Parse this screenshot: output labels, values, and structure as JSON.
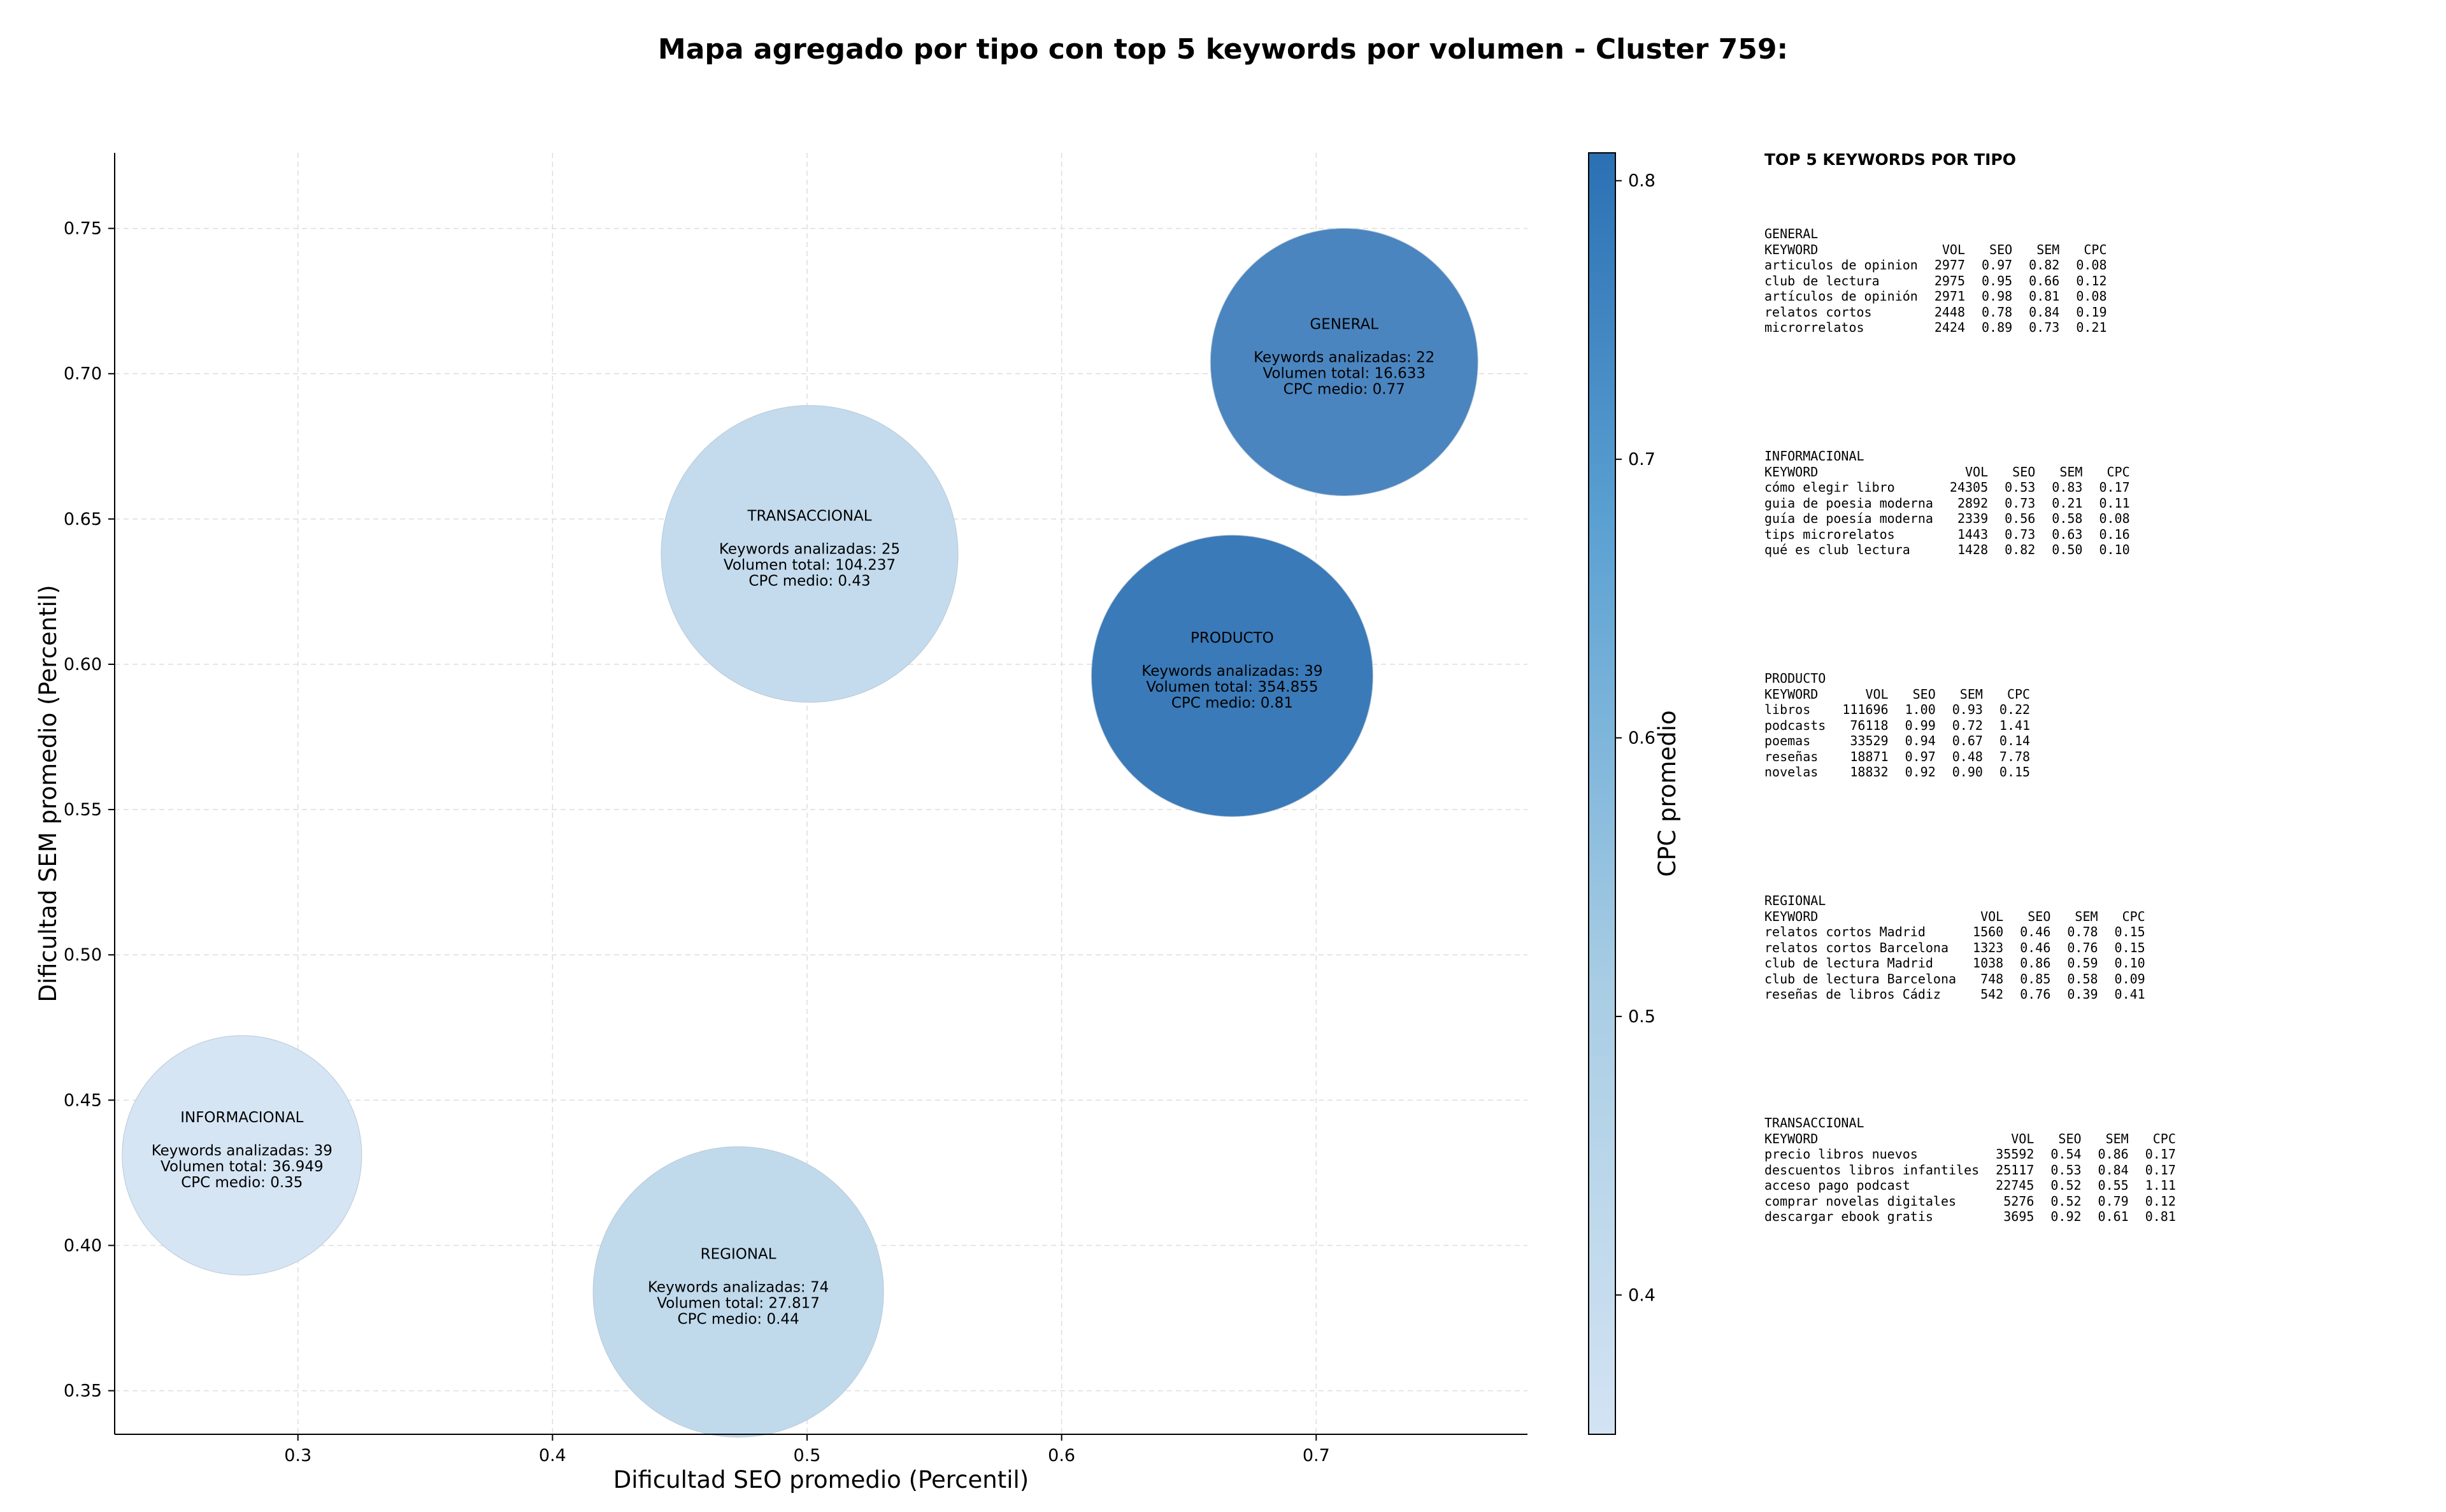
{
  "title": "Mapa agregado por tipo con top 5 keywords por volumen - Cluster 759:",
  "chart_data": {
    "type": "scatter",
    "xlabel": "Dificultad SEO promedio (Percentil)",
    "ylabel": "Dificultad SEM promedio (Percentil)",
    "xlim": [
      0.228,
      0.783
    ],
    "ylim": [
      0.335,
      0.776
    ],
    "xticks": [
      "0.3",
      "0.4",
      "0.5",
      "0.6",
      "0.7"
    ],
    "yticks": [
      "0.35",
      "0.40",
      "0.45",
      "0.50",
      "0.55",
      "0.60",
      "0.65",
      "0.70",
      "0.75"
    ],
    "grid": true,
    "colorbar": {
      "label": "CPC promedio",
      "range": [
        0.35,
        0.81
      ],
      "ticks": [
        "0.4",
        "0.5",
        "0.6",
        "0.7",
        "0.8"
      ],
      "color_low": "#d3e3f3",
      "color_high": "#2b70b3"
    },
    "points": [
      {
        "type": "GENERAL",
        "x": 0.711,
        "y": 0.704,
        "keywords_label": "Keywords analizadas: 22",
        "volume_label": "Volumen total: 16.633",
        "cpc_label": "CPC medio: 0.77",
        "cpc": 0.77,
        "keywords": 22
      },
      {
        "type": "TRANSACCIONAL",
        "x": 0.501,
        "y": 0.638,
        "keywords_label": "Keywords analizadas: 25",
        "volume_label": "Volumen total: 104.237",
        "cpc_label": "CPC medio: 0.43",
        "cpc": 0.43,
        "keywords": 25
      },
      {
        "type": "PRODUCTO",
        "x": 0.667,
        "y": 0.596,
        "keywords_label": "Keywords analizadas: 39",
        "volume_label": "Volumen total: 354.855",
        "cpc_label": "CPC medio: 0.81",
        "cpc": 0.81,
        "keywords": 39
      },
      {
        "type": "INFORMACIONAL",
        "x": 0.278,
        "y": 0.431,
        "keywords_label": "Keywords analizadas: 39",
        "volume_label": "Volumen total: 36.949",
        "cpc_label": "CPC medio: 0.35",
        "cpc": 0.35,
        "keywords": 39
      },
      {
        "type": "REGIONAL",
        "x": 0.473,
        "y": 0.384,
        "keywords_label": "Keywords analizadas: 74",
        "volume_label": "Volumen total: 27.817",
        "cpc_label": "CPC medio: 0.44",
        "cpc": 0.44,
        "keywords": 74
      }
    ]
  },
  "side_panel": {
    "title": "TOP 5 KEYWORDS POR TIPO",
    "headers": [
      "KEYWORD",
      "VOL",
      "SEO",
      "SEM",
      "CPC"
    ],
    "groups": [
      {
        "type": "GENERAL",
        "rows": [
          [
            "articulos de opinion",
            "2977",
            "0.97",
            "0.82",
            "0.08"
          ],
          [
            "club de lectura",
            "2975",
            "0.95",
            "0.66",
            "0.12"
          ],
          [
            "artículos de opinión",
            "2971",
            "0.98",
            "0.81",
            "0.08"
          ],
          [
            "relatos cortos",
            "2448",
            "0.78",
            "0.84",
            "0.19"
          ],
          [
            "microrrelatos",
            "2424",
            "0.89",
            "0.73",
            "0.21"
          ]
        ]
      },
      {
        "type": "INFORMACIONAL",
        "rows": [
          [
            "cómo elegir libro",
            "24305",
            "0.53",
            "0.83",
            "0.17"
          ],
          [
            "guia de poesia moderna",
            "2892",
            "0.73",
            "0.21",
            "0.11"
          ],
          [
            "guía de poesía moderna",
            "2339",
            "0.56",
            "0.58",
            "0.08"
          ],
          [
            "tips microrelatos",
            "1443",
            "0.73",
            "0.63",
            "0.16"
          ],
          [
            "qué es club lectura",
            "1428",
            "0.82",
            "0.50",
            "0.10"
          ]
        ]
      },
      {
        "type": "PRODUCTO",
        "rows": [
          [
            "libros",
            "111696",
            "1.00",
            "0.93",
            "0.22"
          ],
          [
            "podcasts",
            "76118",
            "0.99",
            "0.72",
            "1.41"
          ],
          [
            "poemas",
            "33529",
            "0.94",
            "0.67",
            "0.14"
          ],
          [
            "reseñas",
            "18871",
            "0.97",
            "0.48",
            "7.78"
          ],
          [
            "novelas",
            "18832",
            "0.92",
            "0.90",
            "0.15"
          ]
        ]
      },
      {
        "type": "REGIONAL",
        "rows": [
          [
            "relatos cortos Madrid",
            "1560",
            "0.46",
            "0.78",
            "0.15"
          ],
          [
            "relatos cortos Barcelona",
            "1323",
            "0.46",
            "0.76",
            "0.15"
          ],
          [
            "club de lectura Madrid",
            "1038",
            "0.86",
            "0.59",
            "0.10"
          ],
          [
            "club de lectura Barcelona",
            "748",
            "0.85",
            "0.58",
            "0.09"
          ],
          [
            "reseñas de libros Cádiz",
            "542",
            "0.76",
            "0.39",
            "0.41"
          ]
        ]
      },
      {
        "type": "TRANSACCIONAL",
        "rows": [
          [
            "precio libros nuevos",
            "35592",
            "0.54",
            "0.86",
            "0.17"
          ],
          [
            "descuentos libros infantiles",
            "25117",
            "0.53",
            "0.84",
            "0.17"
          ],
          [
            "acceso pago podcast",
            "22745",
            "0.52",
            "0.55",
            "1.11"
          ],
          [
            "comprar novelas digitales",
            "5276",
            "0.52",
            "0.79",
            "0.12"
          ],
          [
            "descargar ebook gratis",
            "3695",
            "0.92",
            "0.61",
            "0.81"
          ]
        ]
      }
    ]
  }
}
